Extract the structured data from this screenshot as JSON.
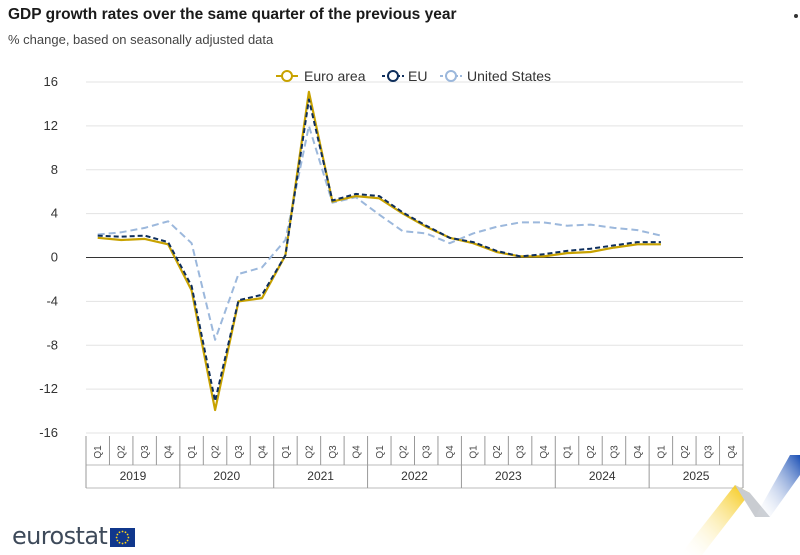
{
  "header": {
    "title": "GDP growth rates over the same quarter of the previous year",
    "subtitle": "% change, based on seasonally adjusted data"
  },
  "logo": {
    "text": "eurostat",
    "flag_icon": "eu-flag-icon"
  },
  "chart_data": {
    "type": "line",
    "title": "GDP growth rates over the same quarter of the previous year",
    "subtitle": "% change, based on seasonally adjusted data",
    "xlabel": "",
    "ylabel": "",
    "ylim": [
      -16,
      16
    ],
    "yticks": [
      16,
      12,
      8,
      4,
      0,
      -4,
      -8,
      -12,
      -16
    ],
    "grid": true,
    "legend_position": "top-center",
    "years": [
      "2019",
      "2020",
      "2021",
      "2022",
      "2023",
      "2024",
      "2025"
    ],
    "quarter_labels": [
      "Q1",
      "Q2",
      "Q3",
      "Q4"
    ],
    "categories": [
      "2019 Q1",
      "2019 Q2",
      "2019 Q3",
      "2019 Q4",
      "2020 Q1",
      "2020 Q2",
      "2020 Q3",
      "2020 Q4",
      "2021 Q1",
      "2021 Q2",
      "2021 Q3",
      "2021 Q4",
      "2022 Q1",
      "2022 Q2",
      "2022 Q3",
      "2022 Q4",
      "2023 Q1",
      "2023 Q2",
      "2023 Q3",
      "2023 Q4",
      "2024 Q1",
      "2024 Q2",
      "2024 Q3",
      "2024 Q4",
      "2025 Q1",
      "2025 Q2",
      "2025 Q3",
      "2025 Q4"
    ],
    "series": [
      {
        "name": "Euro area",
        "color": "#c8a200",
        "dashed": false,
        "values": [
          1.8,
          1.6,
          1.7,
          1.2,
          -3.0,
          -13.9,
          -4.0,
          -3.7,
          0.2,
          15.1,
          5.1,
          5.6,
          5.4,
          4.0,
          2.8,
          1.8,
          1.3,
          0.5,
          0.1,
          0.1,
          0.4,
          0.5,
          0.9,
          1.2,
          1.2,
          null,
          null,
          null
        ]
      },
      {
        "name": "EU",
        "color": "#0e2e5c",
        "dashed": true,
        "values": [
          2.0,
          1.9,
          2.0,
          1.4,
          -2.6,
          -13.1,
          -3.9,
          -3.4,
          0.2,
          14.4,
          5.2,
          5.8,
          5.6,
          4.1,
          2.9,
          1.8,
          1.4,
          0.6,
          0.1,
          0.3,
          0.6,
          0.8,
          1.1,
          1.4,
          1.4,
          null,
          null,
          null
        ]
      },
      {
        "name": "United States",
        "color": "#9cb8dc",
        "dashed": true,
        "values": [
          2.1,
          2.3,
          2.7,
          3.3,
          1.3,
          -7.5,
          -1.5,
          -0.9,
          1.6,
          12.0,
          5.0,
          5.5,
          3.9,
          2.4,
          2.2,
          1.3,
          2.2,
          2.8,
          3.2,
          3.2,
          2.9,
          3.0,
          2.7,
          2.5,
          2.0,
          null,
          null,
          null
        ]
      }
    ]
  }
}
